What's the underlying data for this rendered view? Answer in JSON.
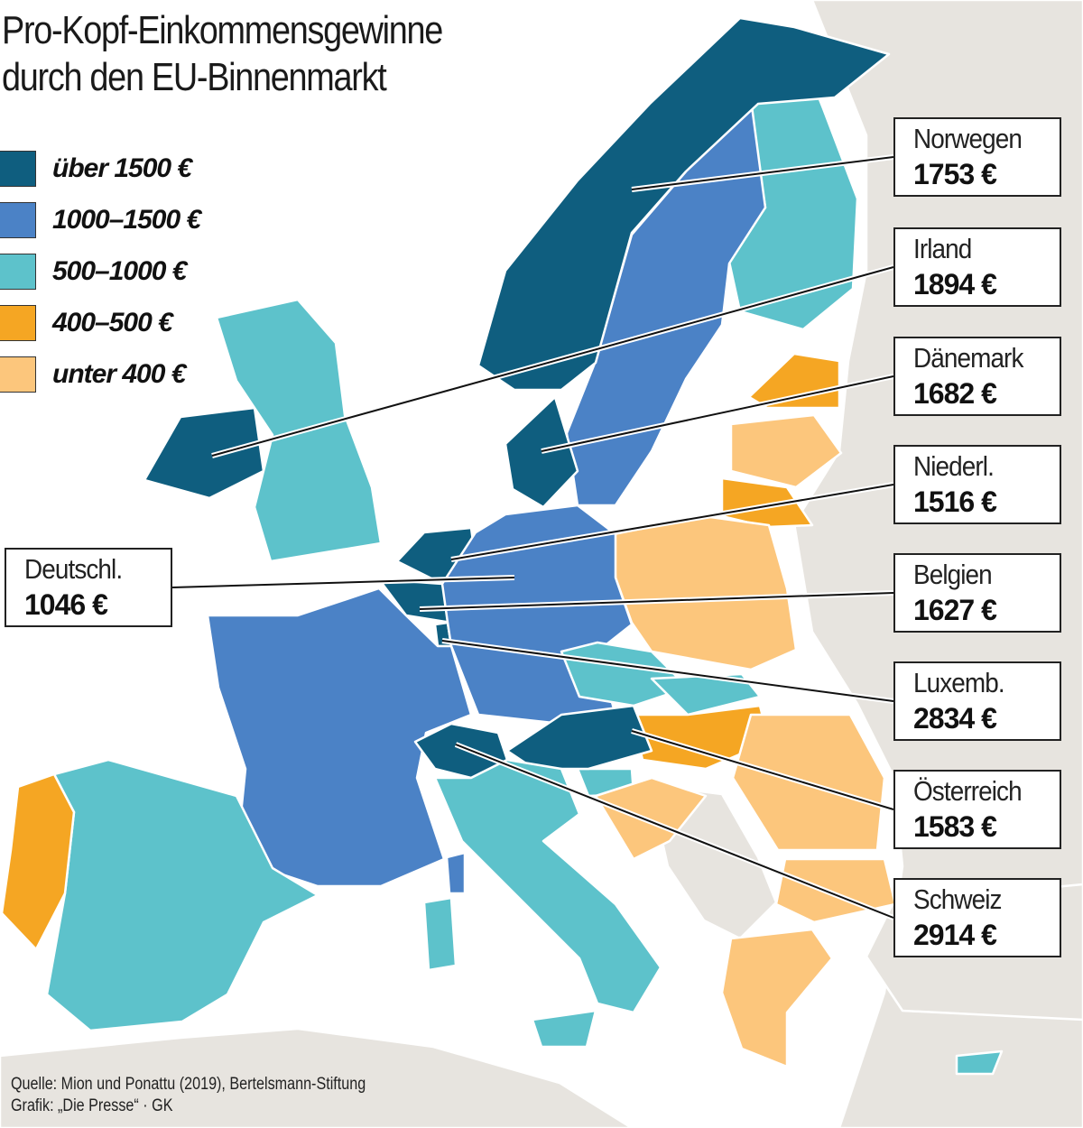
{
  "title_lines": [
    "Pro-Kopf-Einkommensgewinne",
    "durch den EU-Binnenmarkt"
  ],
  "legend": [
    {
      "label": "über 1500 €",
      "color": "#0f5e7f"
    },
    {
      "label": "1000–1500 €",
      "color": "#4b82c6"
    },
    {
      "label": "500–1000 €",
      "color": "#5dc2cb"
    },
    {
      "label": "400–500 €",
      "color": "#f5a623"
    },
    {
      "label": "unter 400 €",
      "color": "#fcc67c"
    }
  ],
  "colors": {
    "non_eu_land": "#e7e4df",
    "sea": "#ffffff",
    "border": "#ffffff"
  },
  "callouts": [
    {
      "name": "Norwegen",
      "value": "1753 €",
      "category": 0
    },
    {
      "name": "Irland",
      "value": "1894 €",
      "category": 0
    },
    {
      "name": "Dänemark",
      "value": "1682 €",
      "category": 0
    },
    {
      "name": "Niederl.",
      "value": "1516 €",
      "category": 0
    },
    {
      "name": "Belgien",
      "value": "1627 €",
      "category": 0
    },
    {
      "name": "Luxemb.",
      "value": "2834 €",
      "category": 0
    },
    {
      "name": "Österreich",
      "value": "1583 €",
      "category": 0
    },
    {
      "name": "Schweiz",
      "value": "2914 €",
      "category": 0
    },
    {
      "name": "Deutschl.",
      "value": "1046 €",
      "category": 1
    }
  ],
  "source_lines": [
    "Quelle: Mion und Ponattu (2019), Bertelsmann-Stiftung",
    "Grafik: „Die Presse“ · GK"
  ]
}
